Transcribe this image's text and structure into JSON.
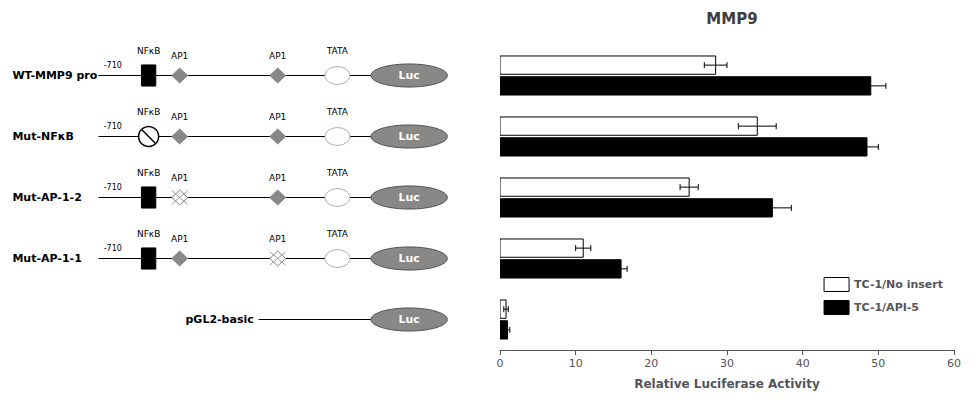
{
  "chart_data": {
    "type": "bar",
    "orientation": "horizontal",
    "title": "MMP9",
    "xlabel": "Relative Luciferase Activity",
    "categories": [
      "WT-MMP9 pro",
      "Mut-NFκB",
      "Mut-AP-1-2",
      "Mut-AP-1-1",
      "pGL2-basic"
    ],
    "series": [
      {
        "name": "TC-1/No insert",
        "color": "#ffffff",
        "values": [
          28.5,
          34.0,
          25.0,
          11.0,
          0.8
        ],
        "errors": [
          1.5,
          2.5,
          1.2,
          1.0,
          0.3
        ]
      },
      {
        "name": "TC-1/API-5",
        "color": "#000000",
        "values": [
          49.0,
          48.5,
          36.0,
          16.0,
          1.0
        ],
        "errors": [
          2.0,
          1.5,
          2.5,
          0.8,
          0.3
        ]
      }
    ],
    "xlim": [
      0,
      60
    ],
    "xticks": [
      0,
      10,
      20,
      30,
      40,
      50,
      60
    ],
    "grid": false,
    "legend": "right",
    "tick_labels": "x",
    "annotations": [
      "-710",
      "NFκB",
      "AP1",
      "TATA",
      "Luc"
    ]
  }
}
